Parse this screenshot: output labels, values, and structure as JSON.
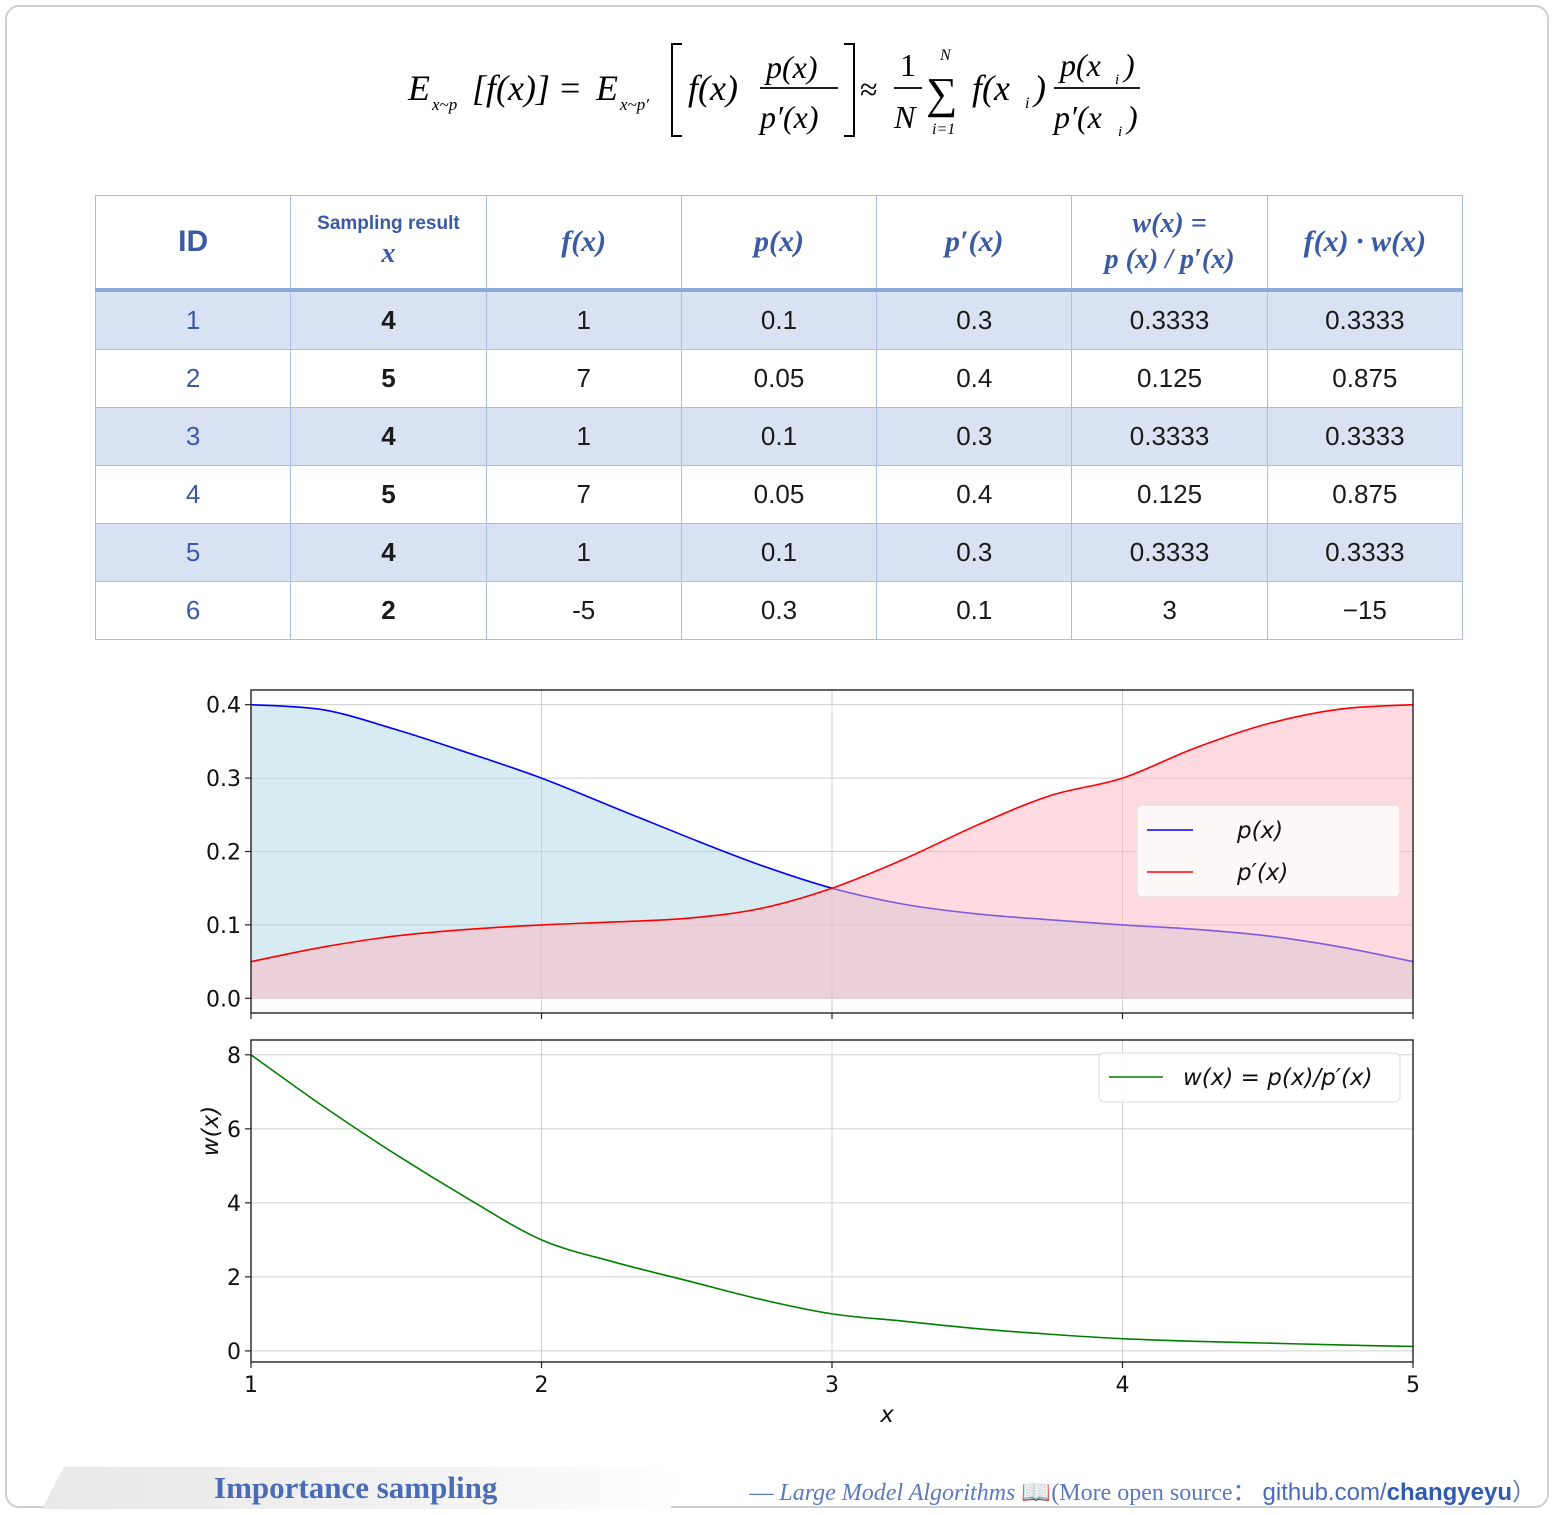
{
  "formula": {
    "lhs_E": "E",
    "lhs_sub": "x~p",
    "lhs_arg": "[f(x)]",
    "eq": "=",
    "mid_E": "E",
    "mid_sub": "x~p′",
    "mid_fx": "f(x)",
    "mid_num": "p(x)",
    "mid_den": "p′(x)",
    "approx": "≈",
    "one": "1",
    "N": "N",
    "sum": "∑",
    "sum_top": "N",
    "sum_bottom": "i=1",
    "rhs_f": "f(x",
    "rhs_i": "i",
    "rhs_close": ")",
    "rhs_num": "p(x",
    "rhs_den": "p′(x"
  },
  "table": {
    "headers": {
      "id": "ID",
      "sampling_top": "Sampling result",
      "sampling_bottom": "x",
      "fx": "f(x)",
      "px": "p(x)",
      "ppx": "p′(x)",
      "w_top": "w(x) =",
      "w_bottom": "p (x) / p′(x)",
      "fw": "f(x) · w(x)"
    },
    "rows": [
      {
        "id": "1",
        "x": "4",
        "fx": "1",
        "px": "0.1",
        "ppx": "0.3",
        "w": "0.3333",
        "fw": "0.3333"
      },
      {
        "id": "2",
        "x": "5",
        "fx": "7",
        "px": "0.05",
        "ppx": "0.4",
        "w": "0.125",
        "fw": "0.875"
      },
      {
        "id": "3",
        "x": "4",
        "fx": "1",
        "px": "0.1",
        "ppx": "0.3",
        "w": "0.3333",
        "fw": "0.3333"
      },
      {
        "id": "4",
        "x": "5",
        "fx": "7",
        "px": "0.05",
        "ppx": "0.4",
        "w": "0.125",
        "fw": "0.875"
      },
      {
        "id": "5",
        "x": "4",
        "fx": "1",
        "px": "0.1",
        "ppx": "0.3",
        "w": "0.3333",
        "fw": "0.3333"
      },
      {
        "id": "6",
        "x": "2",
        "fx": "-5",
        "px": "0.3",
        "ppx": "0.1",
        "w": "3",
        "fw": "−15"
      }
    ]
  },
  "chart_data": [
    {
      "type": "area",
      "x": [
        1,
        1.25,
        1.5,
        1.75,
        2,
        2.25,
        2.5,
        2.75,
        3,
        3.25,
        3.5,
        3.75,
        4,
        4.25,
        4.5,
        4.75,
        5
      ],
      "series": [
        {
          "name": "p(x)",
          "color": "#0000ff",
          "fill": "#add8e6",
          "values": [
            0.4,
            0.393,
            0.366,
            0.334,
            0.3,
            0.26,
            0.22,
            0.182,
            0.15,
            0.128,
            0.115,
            0.107,
            0.1,
            0.094,
            0.085,
            0.07,
            0.05
          ]
        },
        {
          "name": "p′(x)",
          "color": "#ff0000",
          "fill": "#ffb6c1",
          "values": [
            0.05,
            0.07,
            0.085,
            0.094,
            0.1,
            0.104,
            0.109,
            0.122,
            0.15,
            0.19,
            0.236,
            0.276,
            0.3,
            0.341,
            0.374,
            0.394,
            0.4
          ]
        }
      ],
      "xlim": [
        1,
        5
      ],
      "ylim": [
        -0.02,
        0.42
      ],
      "yticks": [
        0.0,
        0.1,
        0.2,
        0.3,
        0.4
      ],
      "ytick_labels": [
        "0.0",
        "0.1",
        "0.2",
        "0.3",
        "0.4"
      ],
      "xticks": [
        1,
        2,
        3,
        4,
        5
      ],
      "grid": true,
      "legend": "center-right"
    },
    {
      "type": "line",
      "x": [
        1,
        1.25,
        1.5,
        1.75,
        2,
        2.25,
        2.5,
        2.75,
        3,
        3.25,
        3.5,
        3.75,
        4,
        4.25,
        4.5,
        4.75,
        5
      ],
      "series": [
        {
          "name": "w(x) = p(x)/p′(x)",
          "color": "#008000",
          "values": [
            8.0,
            6.6,
            5.3,
            4.1,
            3.0,
            2.4,
            1.9,
            1.4,
            1.0,
            0.8,
            0.6,
            0.45,
            0.33,
            0.26,
            0.21,
            0.16,
            0.12
          ]
        }
      ],
      "xlim": [
        1,
        5
      ],
      "ylim": [
        -0.3,
        8.4
      ],
      "yticks": [
        0,
        2,
        4,
        6,
        8
      ],
      "ytick_labels": [
        "0",
        "2",
        "4",
        "6",
        "8"
      ],
      "xticks": [
        1,
        2,
        3,
        4,
        5
      ],
      "xtick_labels": [
        "1",
        "2",
        "3",
        "4",
        "5"
      ],
      "xlabel": "x",
      "ylabel": "w(x)",
      "grid": true,
      "legend": "top-right"
    }
  ],
  "footer": {
    "title": "Importance sampling",
    "dash": "— ",
    "book": "Large Model Algorithms",
    "book_icon": "📖",
    "open_source": "(More open source：",
    "gh_prefix": "github.com/",
    "gh_user": "changyeyu",
    "close": "）"
  }
}
